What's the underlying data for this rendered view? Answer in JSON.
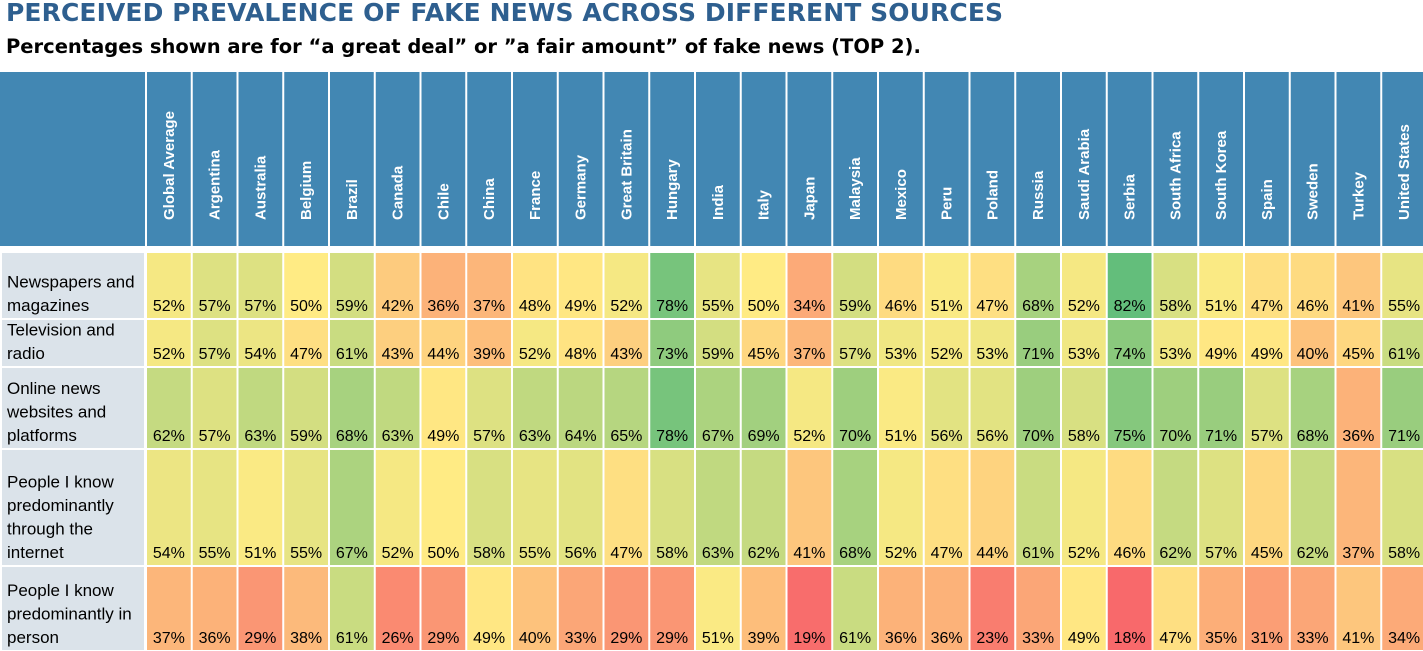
{
  "chart_data": {
    "type": "heatmap",
    "title": "PERCEIVED PREVALENCE OF FAKE NEWS ACROSS DIFFERENT SOURCES",
    "subtitle": "Percentages shown are for “a great deal” or ”a fair amount” of fake news (TOP 2).",
    "value_unit": "%",
    "color_scale": {
      "low": "#f8696b",
      "mid": "#ffeb84",
      "high": "#63be7b",
      "min": 18,
      "mid_value": 50,
      "max": 82
    },
    "header_color": "#4287b3",
    "row_label_color": "#dbe3ea",
    "columns": [
      "Global Average",
      "Argentina",
      "Australia",
      "Belgium",
      "Brazil",
      "Canada",
      "Chile",
      "China",
      "France",
      "Germany",
      "Great Britain",
      "Hungary",
      "India",
      "Italy",
      "Japan",
      "Malaysia",
      "Mexico",
      "Peru",
      "Poland",
      "Russia",
      "Saudi Arabia",
      "Serbia",
      "South Africa",
      "South Korea",
      "Spain",
      "Sweden",
      "Turkey",
      "United States"
    ],
    "rows": [
      {
        "label": "Newspapers and magazines",
        "values": [
          52,
          57,
          57,
          50,
          59,
          42,
          36,
          37,
          48,
          49,
          52,
          78,
          55,
          50,
          34,
          59,
          46,
          51,
          47,
          68,
          52,
          82,
          58,
          51,
          47,
          46,
          41,
          55
        ]
      },
      {
        "label": "Television and radio",
        "values": [
          52,
          57,
          54,
          47,
          61,
          43,
          44,
          39,
          52,
          48,
          43,
          73,
          59,
          45,
          37,
          57,
          53,
          52,
          53,
          71,
          53,
          74,
          53,
          49,
          49,
          40,
          45,
          61
        ]
      },
      {
        "label": "Online news websites and platforms",
        "values": [
          62,
          57,
          63,
          59,
          68,
          63,
          49,
          57,
          63,
          64,
          65,
          78,
          67,
          69,
          52,
          70,
          51,
          56,
          56,
          70,
          58,
          75,
          70,
          71,
          57,
          68,
          36,
          71
        ]
      },
      {
        "label": "People I know predominantly through the internet",
        "values": [
          54,
          55,
          51,
          55,
          67,
          52,
          50,
          58,
          55,
          56,
          47,
          58,
          63,
          62,
          41,
          68,
          52,
          47,
          44,
          61,
          52,
          46,
          62,
          57,
          45,
          62,
          37,
          58
        ]
      },
      {
        "label": "People I know predominantly in person",
        "values": [
          37,
          36,
          29,
          38,
          61,
          26,
          29,
          49,
          40,
          33,
          29,
          29,
          51,
          39,
          19,
          61,
          36,
          36,
          23,
          33,
          49,
          18,
          47,
          35,
          31,
          33,
          41,
          34
        ]
      }
    ]
  }
}
